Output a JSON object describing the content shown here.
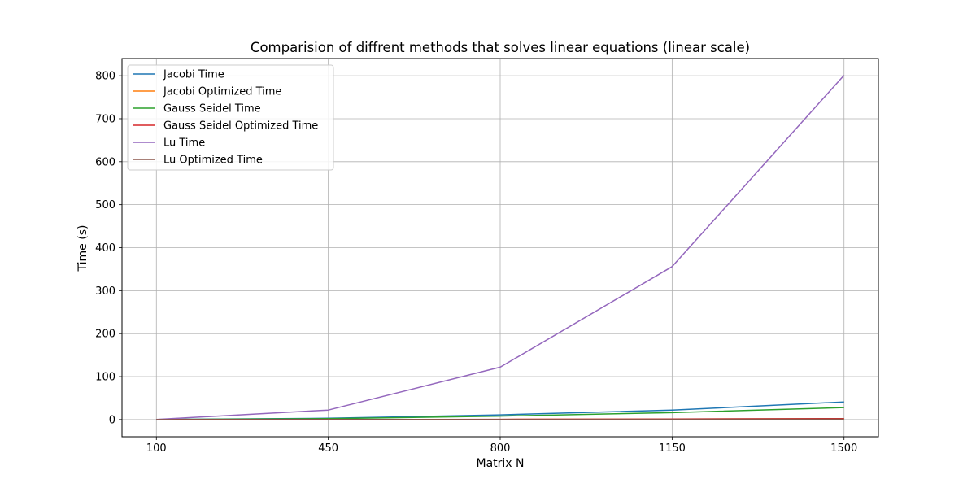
{
  "chart_data": {
    "type": "line",
    "title": "Comparision of diffrent methods that solves linear equations (linear scale)",
    "xlabel": "Matrix N",
    "ylabel": "Time (s)",
    "x": [
      100,
      450,
      800,
      1150,
      1500
    ],
    "x_ticks": [
      100,
      450,
      800,
      1150,
      1500
    ],
    "y_ticks": [
      0,
      100,
      200,
      300,
      400,
      500,
      600,
      700,
      800
    ],
    "xlim": [
      30,
      1570
    ],
    "ylim": [
      -40,
      840
    ],
    "grid": true,
    "legend_position": "top-left",
    "series": [
      {
        "name": "Jacobi Time",
        "color": "#1f77b4",
        "values": [
          0.2,
          3,
          11,
          22,
          41
        ]
      },
      {
        "name": "Jacobi Optimized Time",
        "color": "#ff7f0e",
        "values": [
          0,
          0.1,
          0.4,
          0.9,
          1.6
        ]
      },
      {
        "name": "Gauss Seidel Time",
        "color": "#2ca02c",
        "values": [
          0.1,
          2,
          8,
          16,
          28
        ]
      },
      {
        "name": "Gauss Seidel Optimized Time",
        "color": "#d62728",
        "values": [
          0,
          0.1,
          0.5,
          1.2,
          2.2
        ]
      },
      {
        "name": "Lu Time",
        "color": "#9467bd",
        "values": [
          0.3,
          22,
          122,
          356,
          801
        ]
      },
      {
        "name": "Lu Optimized Time",
        "color": "#8c564b",
        "values": [
          0,
          0.05,
          0.2,
          0.5,
          0.9
        ]
      }
    ]
  }
}
